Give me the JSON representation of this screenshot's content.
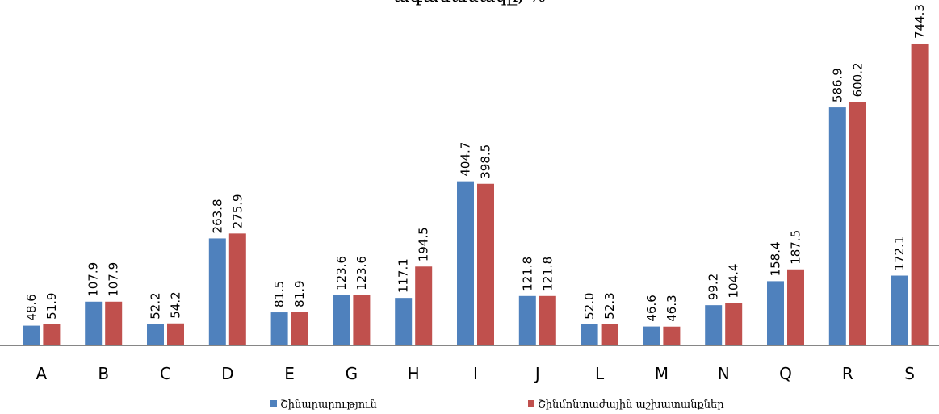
{
  "chart_data": {
    "type": "bar",
    "title": "ագամանակը, %",
    "xlabel": "",
    "ylabel": "",
    "ylim": [
      0,
      800
    ],
    "grid": false,
    "legend_position": "bottom",
    "categories": [
      "A",
      "B",
      "C",
      "D",
      "E",
      "G",
      "H",
      "I",
      "J",
      "L",
      "M",
      "N",
      "Q",
      "R",
      "S"
    ],
    "series": [
      {
        "name": "Շինարարություն",
        "color": "#4F81BD",
        "values": [
          48.6,
          107.9,
          52.2,
          263.8,
          81.5,
          123.6,
          117.1,
          404.7,
          121.8,
          52.0,
          46.6,
          99.2,
          158.4,
          586.9,
          172.1
        ],
        "labels": [
          "48.6",
          "107.9",
          "52.2",
          "263.8",
          "81.5",
          "123.6",
          "117.1",
          "404.7",
          "121.8",
          "52.0",
          "46.6",
          "99.2",
          "158.4",
          "586.9",
          "172.1"
        ]
      },
      {
        "name": "Շինմոնտաժային  աշխատանքներ",
        "color": "#C0504D",
        "values": [
          51.9,
          107.9,
          54.2,
          275.9,
          81.9,
          123.6,
          194.5,
          398.5,
          121.8,
          52.3,
          46.3,
          104.4,
          187.5,
          600.2,
          744.3
        ],
        "labels": [
          "51.9",
          "107.9",
          "54.2",
          "275.9",
          "81.9",
          "123.6",
          "194.5",
          "398.5",
          "121.8",
          "52.3",
          "46.3",
          "104.4",
          "187.5",
          "600.2",
          "744.3"
        ]
      }
    ]
  }
}
